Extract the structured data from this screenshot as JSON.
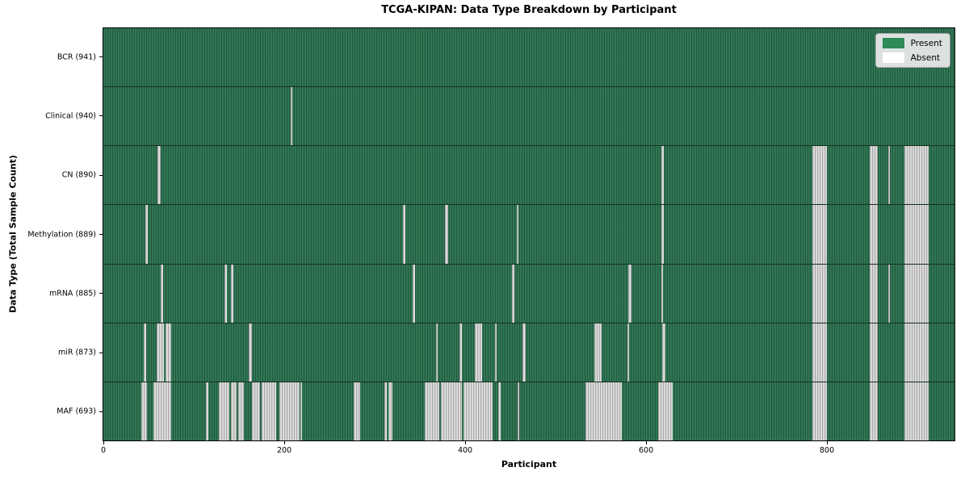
{
  "chart_data": {
    "type": "heatmap",
    "title": "TCGA-KIPAN: Data Type Breakdown by Participant",
    "xlabel": "Participant",
    "ylabel": "Data Type (Total Sample Count)",
    "x_range": [
      0,
      941
    ],
    "x_ticks": [
      0,
      200,
      400,
      600,
      800
    ],
    "grid": false,
    "legend_position": "upper right",
    "legend": [
      {
        "label": "Present",
        "color": "#2e8b57"
      },
      {
        "label": "Absent",
        "color": "#ffffff"
      }
    ],
    "colors": {
      "present_green": "#2e8b57",
      "absent_white": "#ffffff",
      "row_divider": "#17301f",
      "legend_background": "#ebebeb"
    },
    "rows": [
      {
        "label": "BCR (941)",
        "data_type": "BCR",
        "total_samples": 941,
        "absent_ranges": []
      },
      {
        "label": "Clinical (940)",
        "data_type": "Clinical",
        "total_samples": 940,
        "absent_ranges": [
          [
            207,
            209
          ]
        ]
      },
      {
        "label": "CN (890)",
        "data_type": "CN",
        "total_samples": 890,
        "absent_ranges": [
          [
            60,
            63
          ],
          [
            617,
            620
          ],
          [
            784,
            800
          ],
          [
            847,
            856
          ],
          [
            868,
            870
          ],
          [
            886,
            912
          ]
        ]
      },
      {
        "label": "Methylation (889)",
        "data_type": "Methylation",
        "total_samples": 889,
        "absent_ranges": [
          [
            46,
            49
          ],
          [
            331,
            334
          ],
          [
            378,
            381
          ],
          [
            457,
            459
          ],
          [
            617,
            620
          ],
          [
            784,
            800
          ],
          [
            847,
            856
          ],
          [
            886,
            912
          ]
        ]
      },
      {
        "label": "mRNA (885)",
        "data_type": "mRNA",
        "total_samples": 885,
        "absent_ranges": [
          [
            63,
            66
          ],
          [
            134,
            137
          ],
          [
            141,
            144
          ],
          [
            342,
            345
          ],
          [
            452,
            454
          ],
          [
            580,
            584
          ],
          [
            617,
            619
          ],
          [
            784,
            800
          ],
          [
            847,
            856
          ],
          [
            868,
            870
          ],
          [
            886,
            912
          ]
        ]
      },
      {
        "label": "miR (873)",
        "data_type": "miR",
        "total_samples": 873,
        "absent_ranges": [
          [
            45,
            47
          ],
          [
            59,
            67
          ],
          [
            69,
            75
          ],
          [
            161,
            164
          ],
          [
            368,
            370
          ],
          [
            394,
            396
          ],
          [
            411,
            419
          ],
          [
            433,
            435
          ],
          [
            463,
            467
          ],
          [
            543,
            551
          ],
          [
            579,
            581
          ],
          [
            618,
            621
          ],
          [
            784,
            800
          ],
          [
            847,
            856
          ],
          [
            886,
            912
          ]
        ]
      },
      {
        "label": "MAF (693)",
        "data_type": "MAF",
        "total_samples": 693,
        "absent_ranges": [
          [
            42,
            48
          ],
          [
            55,
            75
          ],
          [
            113,
            116
          ],
          [
            128,
            139
          ],
          [
            141,
            147
          ],
          [
            149,
            155
          ],
          [
            164,
            173
          ],
          [
            175,
            191
          ],
          [
            195,
            217
          ],
          [
            218,
            220
          ],
          [
            277,
            284
          ],
          [
            311,
            313
          ],
          [
            315,
            320
          ],
          [
            355,
            371
          ],
          [
            373,
            396
          ],
          [
            398,
            430
          ],
          [
            437,
            439
          ],
          [
            458,
            460
          ],
          [
            533,
            573
          ],
          [
            613,
            629
          ],
          [
            784,
            800
          ],
          [
            847,
            856
          ],
          [
            886,
            912
          ]
        ]
      }
    ]
  }
}
